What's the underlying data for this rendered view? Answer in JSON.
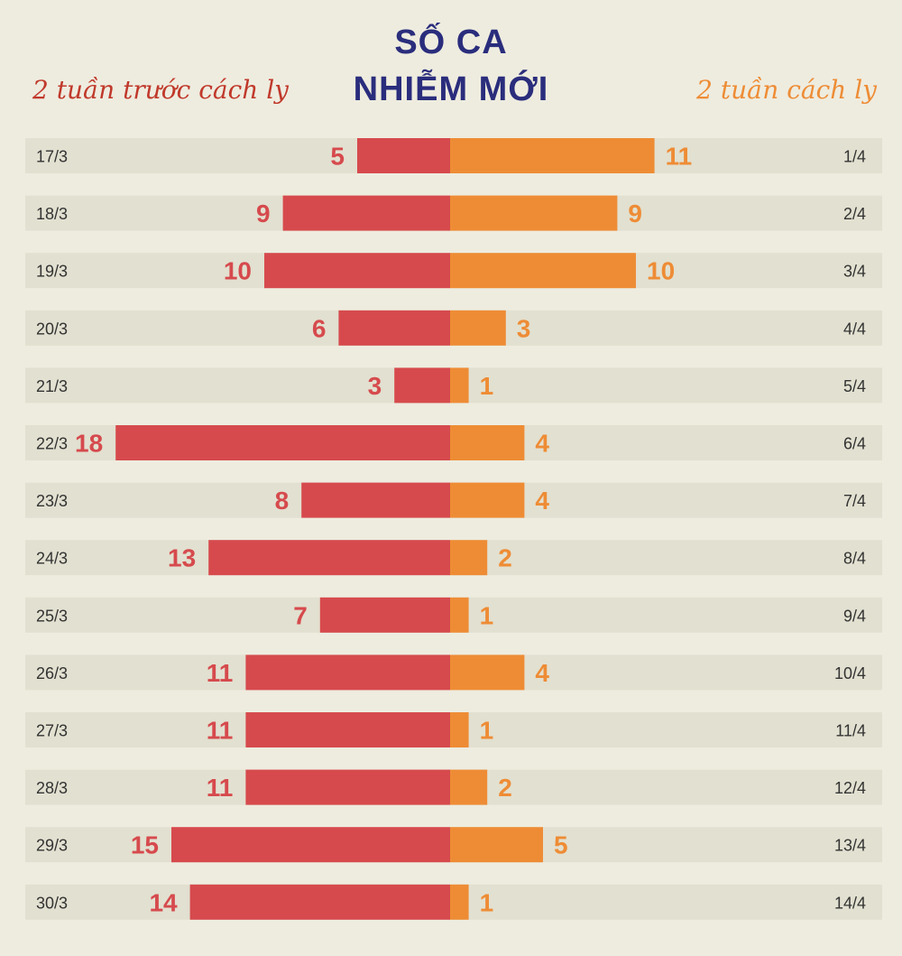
{
  "title": {
    "line1": "SỐ CA",
    "line2": "NHIỄM MỚI"
  },
  "subtitle_left": "2 tuần trước cách ly",
  "subtitle_right": "2 tuần cách ly",
  "colors": {
    "left_bar": "#d64a4d",
    "right_bar": "#ee8c35",
    "title": "#2a2d7c",
    "background": "#eeecdf"
  },
  "chart_data": {
    "type": "bar",
    "orientation": "horizontal-diverging",
    "title": "SỐ CA NHIỄM MỚI",
    "series": [
      {
        "name": "2 tuần trước cách ly",
        "categories": [
          "17/3",
          "18/3",
          "19/3",
          "20/3",
          "21/3",
          "22/3",
          "23/3",
          "24/3",
          "25/3",
          "26/3",
          "27/3",
          "28/3",
          "29/3",
          "30/3"
        ],
        "values": [
          5,
          9,
          10,
          6,
          3,
          18,
          8,
          13,
          7,
          11,
          11,
          11,
          15,
          14
        ]
      },
      {
        "name": "2 tuần cách ly",
        "categories": [
          "1/4",
          "2/4",
          "3/4",
          "4/4",
          "5/4",
          "6/4",
          "7/4",
          "8/4",
          "9/4",
          "10/4",
          "11/4",
          "12/4",
          "13/4",
          "14/4"
        ],
        "values": [
          11,
          9,
          10,
          3,
          1,
          4,
          4,
          2,
          1,
          4,
          1,
          2,
          5,
          1
        ]
      }
    ]
  }
}
